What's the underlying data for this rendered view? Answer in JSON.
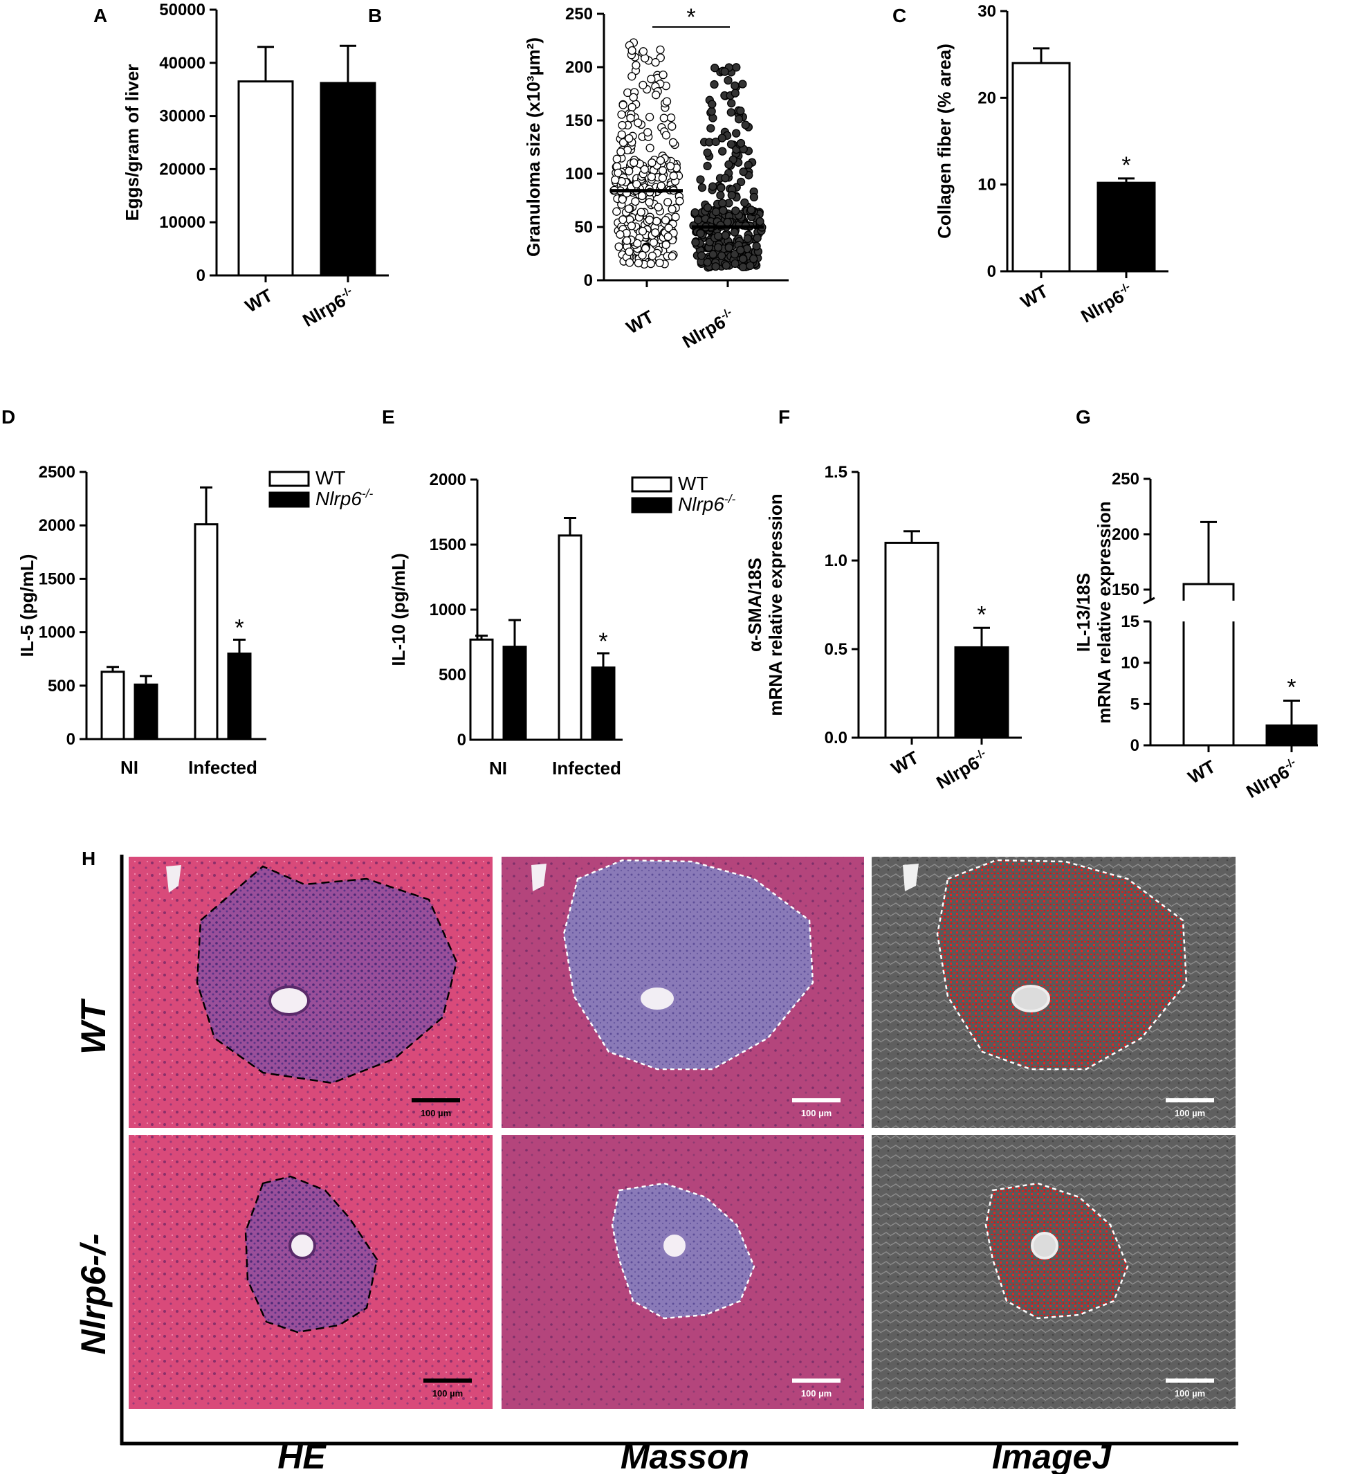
{
  "chart_data": [
    {
      "panel": "A",
      "type": "bar",
      "ylabel": "Eggs/gram of liver",
      "ylim": [
        0,
        50000
      ],
      "yticks": [
        0,
        10000,
        20000,
        30000,
        40000,
        50000
      ],
      "categories": [
        "WT",
        "Nlrp6-/-"
      ],
      "values": [
        36500,
        36200
      ],
      "errors": [
        6500,
        7000
      ],
      "fills": [
        "#ffffff",
        "#000000"
      ]
    },
    {
      "panel": "B",
      "type": "scatter",
      "ylabel": "Granuloma size (x10³µm²)",
      "ylim": [
        0,
        250
      ],
      "yticks": [
        0,
        50,
        100,
        150,
        200,
        250
      ],
      "categories": [
        "WT",
        "Nlrp6-/-"
      ],
      "means": [
        84,
        50
      ],
      "ranges": [
        [
          15,
          225
        ],
        [
          12,
          203
        ]
      ],
      "n_points": [
        300,
        330
      ],
      "annotation": "*"
    },
    {
      "panel": "C",
      "type": "bar",
      "ylabel": "Collagen fiber (% area)",
      "ylim": [
        0,
        30
      ],
      "yticks": [
        0,
        10,
        20,
        30
      ],
      "categories": [
        "WT",
        "Nlrp6-/-"
      ],
      "values": [
        24,
        10.2
      ],
      "errors": [
        1.7,
        0.5
      ],
      "fills": [
        "#ffffff",
        "#000000"
      ],
      "annotations": [
        "",
        "*"
      ]
    },
    {
      "panel": "D",
      "type": "bar",
      "ylabel": "IL-5 (pg/mL)",
      "ylim": [
        0,
        2500
      ],
      "yticks": [
        0,
        500,
        1000,
        1500,
        2000,
        2500
      ],
      "categories": [
        "NI",
        "Infected"
      ],
      "series": [
        {
          "name": "WT",
          "values": [
            630,
            2010
          ],
          "errors": [
            45,
            345
          ],
          "fill": "#ffffff"
        },
        {
          "name": "Nlrp6-/-",
          "values": [
            510,
            800
          ],
          "errors": [
            80,
            130
          ],
          "fill": "#000000"
        }
      ],
      "annotations": [
        "",
        "*"
      ],
      "legend": "top-right"
    },
    {
      "panel": "E",
      "type": "bar",
      "ylabel": "IL-10 (pg/mL)",
      "ylim": [
        0,
        2000
      ],
      "yticks": [
        0,
        500,
        1000,
        1500,
        2000
      ],
      "categories": [
        "NI",
        "Infected"
      ],
      "series": [
        {
          "name": "WT",
          "values": [
            770,
            1570
          ],
          "errors": [
            30,
            135
          ],
          "fill": "#ffffff"
        },
        {
          "name": "Nlrp6-/-",
          "values": [
            715,
            555
          ],
          "errors": [
            205,
            110
          ],
          "fill": "#000000"
        }
      ],
      "annotations": [
        "",
        "*"
      ],
      "legend": "top-right"
    },
    {
      "panel": "F",
      "type": "bar",
      "ylabel": "α-SMA/18S mRNA relative expression",
      "ylim": [
        0,
        1.5
      ],
      "yticks": [
        0.0,
        0.5,
        1.0,
        1.5
      ],
      "ytick_labels": [
        "0.0",
        "0.5",
        "1.0",
        "1.5"
      ],
      "categories": [
        "WT",
        "Nlrp6-/-"
      ],
      "values": [
        1.1,
        0.51
      ],
      "errors": [
        0.065,
        0.11
      ],
      "fills": [
        "#ffffff",
        "#000000"
      ],
      "annotations": [
        "",
        "*"
      ]
    },
    {
      "panel": "G",
      "type": "bar",
      "ylabel": "IL-13/18S mRNA relative expression",
      "ylim": [
        0,
        250
      ],
      "yticks": [
        0,
        5,
        10,
        15,
        150,
        200,
        250
      ],
      "axis_break": [
        15,
        140
      ],
      "categories": [
        "WT",
        "Nlrp6-/-"
      ],
      "values": [
        155,
        2.4
      ],
      "errors": [
        56,
        3.0
      ],
      "fills": [
        "#ffffff",
        "#000000"
      ],
      "annotations": [
        "",
        "*"
      ]
    }
  ],
  "panel_letters": [
    "A",
    "B",
    "C",
    "D",
    "E",
    "F",
    "G",
    "H"
  ],
  "histology": {
    "rows": [
      "WT",
      "Nlrp6-/-"
    ],
    "cols": [
      "HE",
      "Masson",
      "ImageJ"
    ],
    "scale_bar": "100 µm"
  }
}
